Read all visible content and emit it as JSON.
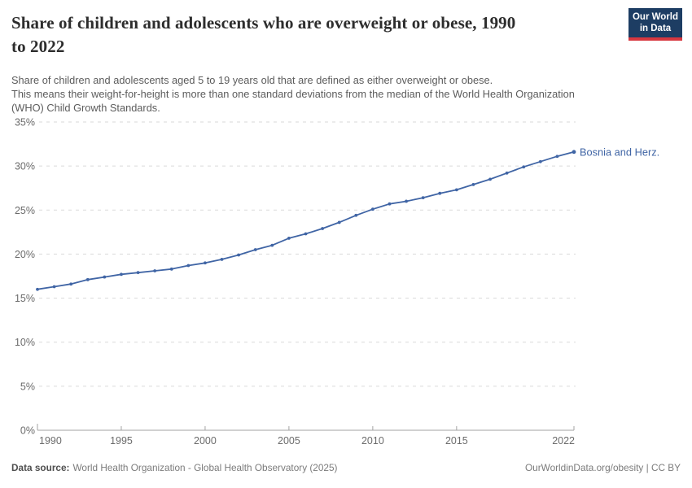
{
  "header": {
    "title_lines": [
      "Share of children and adolescents who are overweight or obese, 1990",
      "to 2022"
    ],
    "subtitle_lines": [
      "Share of children and adolescents aged 5 to 19 years old that are defined as either overweight or obese.",
      "This means their weight-for-height is more than one standard deviations from the median of the World Health Organization",
      "(WHO) Child Growth Standards."
    ],
    "logo": {
      "line1": "Our World",
      "line2": "in Data"
    }
  },
  "chart_data": {
    "type": "line",
    "title": "Share of children and adolescents who are overweight or obese, 1990 to 2022",
    "x": [
      1990,
      1991,
      1992,
      1993,
      1994,
      1995,
      1996,
      1997,
      1998,
      1999,
      2000,
      2001,
      2002,
      2003,
      2004,
      2005,
      2006,
      2007,
      2008,
      2009,
      2010,
      2011,
      2012,
      2013,
      2014,
      2015,
      2016,
      2017,
      2018,
      2019,
      2020,
      2021,
      2022
    ],
    "series": [
      {
        "name": "Bosnia and Herz.",
        "color": "#4065a5",
        "values": [
          16.0,
          16.3,
          16.6,
          17.1,
          17.4,
          17.7,
          17.9,
          18.1,
          18.3,
          18.7,
          19.0,
          19.4,
          19.9,
          20.5,
          21.0,
          21.8,
          22.3,
          22.9,
          23.6,
          24.4,
          25.1,
          25.7,
          26.0,
          26.4,
          26.9,
          27.3,
          27.9,
          28.5,
          29.2,
          29.9,
          30.5,
          31.1,
          31.6
        ]
      }
    ],
    "xlabel": "",
    "ylabel": "",
    "ylim": [
      0,
      35
    ],
    "yticks": [
      0,
      5,
      10,
      15,
      20,
      25,
      30,
      35
    ],
    "ytick_suffix": "%",
    "xticks": [
      1990,
      1995,
      2000,
      2005,
      2010,
      2015,
      2022
    ],
    "grid": "dashed-horizontal",
    "legend_position": "end-of-line-label",
    "end_label": "Bosnia and Herz."
  },
  "footer": {
    "datasource_label": "Data source:",
    "datasource_text": "World Health Organization - Global Health Observatory (2025)",
    "rights_text": "OurWorldinData.org/obesity | CC BY"
  },
  "colors": {
    "accent_line": "#4065a5",
    "logo_bg": "#1d3d63",
    "logo_accent": "#d7373f",
    "grid": "#dadada",
    "axis": "#a3a3a3",
    "tick_label": "#6b6b6b"
  }
}
